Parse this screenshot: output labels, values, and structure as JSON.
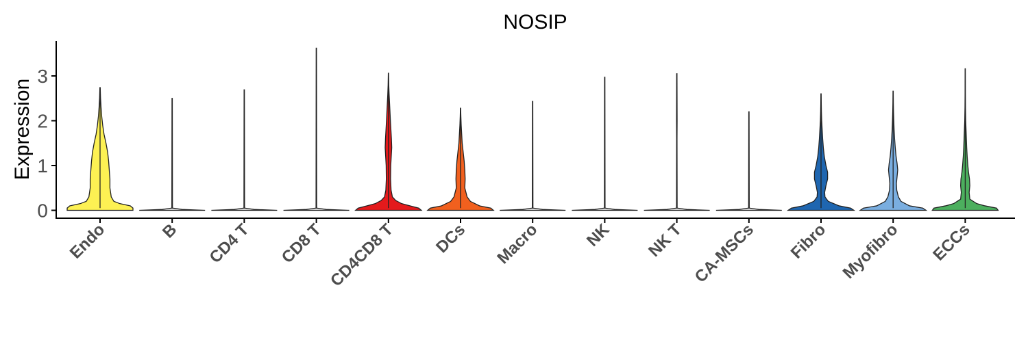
{
  "chart_data": {
    "type": "violin",
    "title": "NOSIP",
    "xlabel": "",
    "ylabel": "Expression",
    "ylim": [
      -0.2,
      3.8
    ],
    "yticks": [
      "0",
      "1",
      "2",
      "3"
    ],
    "grid": false,
    "legend": "none",
    "categories": [
      "Endo",
      "B",
      "CD4 T",
      "CD8 T",
      "CD4CD8 T",
      "DCs",
      "Macro",
      "NK",
      "NK T",
      "CA-MSCs",
      "Fibro",
      "Myofibro",
      "ECCs"
    ],
    "max_values": [
      2.74,
      2.5,
      2.69,
      3.62,
      3.06,
      2.28,
      2.43,
      2.97,
      3.05,
      2.2,
      2.6,
      2.66,
      3.16
    ],
    "colors": [
      "#FDF153",
      "#E7E7E7",
      "#E7E7E7",
      "#E7E7E7",
      "#E41A1C",
      "#F1601E",
      "#E7E7E7",
      "#E7E7E7",
      "#E7E7E7",
      "#E7E7E7",
      "#1F66B0",
      "#7AAEE0",
      "#4CAF5E"
    ],
    "shapes": [
      [
        [
          0,
          1.0
        ],
        [
          0.05,
          1.0
        ],
        [
          0.1,
          0.92
        ],
        [
          0.15,
          0.6
        ],
        [
          0.2,
          0.42
        ],
        [
          0.3,
          0.34
        ],
        [
          0.5,
          0.3
        ],
        [
          0.7,
          0.3
        ],
        [
          0.9,
          0.28
        ],
        [
          1.1,
          0.26
        ],
        [
          1.3,
          0.23
        ],
        [
          1.5,
          0.18
        ],
        [
          1.7,
          0.12
        ],
        [
          1.9,
          0.08
        ],
        [
          2.1,
          0.05
        ],
        [
          2.3,
          0.03
        ],
        [
          2.5,
          0.015
        ],
        [
          2.74,
          0.005
        ]
      ],
      [
        [
          0,
          1.0
        ],
        [
          0.02,
          0.3
        ],
        [
          0.05,
          0.01
        ],
        [
          2.5,
          0.005
        ]
      ],
      [
        [
          0,
          1.0
        ],
        [
          0.02,
          0.3
        ],
        [
          0.05,
          0.01
        ],
        [
          2.69,
          0.005
        ]
      ],
      [
        [
          0,
          1.0
        ],
        [
          0.02,
          0.3
        ],
        [
          0.05,
          0.01
        ],
        [
          3.62,
          0.005
        ]
      ],
      [
        [
          0,
          1.0
        ],
        [
          0.05,
          0.92
        ],
        [
          0.1,
          0.66
        ],
        [
          0.15,
          0.4
        ],
        [
          0.22,
          0.22
        ],
        [
          0.3,
          0.12
        ],
        [
          0.45,
          0.08
        ],
        [
          0.7,
          0.065
        ],
        [
          1.0,
          0.07
        ],
        [
          1.2,
          0.085
        ],
        [
          1.4,
          0.1
        ],
        [
          1.6,
          0.09
        ],
        [
          1.8,
          0.075
        ],
        [
          2.0,
          0.06
        ],
        [
          2.3,
          0.04
        ],
        [
          2.6,
          0.02
        ],
        [
          2.8,
          0.01
        ],
        [
          3.06,
          0.004
        ]
      ],
      [
        [
          0,
          1.0
        ],
        [
          0.05,
          0.92
        ],
        [
          0.1,
          0.58
        ],
        [
          0.2,
          0.3
        ],
        [
          0.3,
          0.2
        ],
        [
          0.5,
          0.13
        ],
        [
          0.7,
          0.14
        ],
        [
          0.9,
          0.13
        ],
        [
          1.1,
          0.11
        ],
        [
          1.3,
          0.08
        ],
        [
          1.5,
          0.05
        ],
        [
          1.7,
          0.035
        ],
        [
          1.9,
          0.02
        ],
        [
          2.1,
          0.01
        ],
        [
          2.28,
          0.004
        ]
      ],
      [
        [
          0,
          1.0
        ],
        [
          0.02,
          0.3
        ],
        [
          0.05,
          0.01
        ],
        [
          2.43,
          0.005
        ]
      ],
      [
        [
          0,
          1.0
        ],
        [
          0.02,
          0.3
        ],
        [
          0.05,
          0.01
        ],
        [
          2.97,
          0.005
        ]
      ],
      [
        [
          0,
          1.0
        ],
        [
          0.02,
          0.3
        ],
        [
          0.05,
          0.01
        ],
        [
          1.6,
          0.006
        ],
        [
          2.0,
          0.009
        ],
        [
          3.05,
          0.005
        ]
      ],
      [
        [
          0,
          1.0
        ],
        [
          0.02,
          0.3
        ],
        [
          0.05,
          0.01
        ],
        [
          2.2,
          0.005
        ]
      ],
      [
        [
          0,
          1.0
        ],
        [
          0.05,
          0.9
        ],
        [
          0.1,
          0.55
        ],
        [
          0.2,
          0.22
        ],
        [
          0.3,
          0.12
        ],
        [
          0.4,
          0.11
        ],
        [
          0.55,
          0.15
        ],
        [
          0.7,
          0.2
        ],
        [
          0.85,
          0.2
        ],
        [
          1.0,
          0.15
        ],
        [
          1.2,
          0.1
        ],
        [
          1.4,
          0.07
        ],
        [
          1.6,
          0.05
        ],
        [
          1.8,
          0.035
        ],
        [
          2.0,
          0.02
        ],
        [
          2.2,
          0.012
        ],
        [
          2.4,
          0.007
        ],
        [
          2.6,
          0.004
        ]
      ],
      [
        [
          0,
          1.0
        ],
        [
          0.05,
          0.9
        ],
        [
          0.1,
          0.5
        ],
        [
          0.2,
          0.24
        ],
        [
          0.3,
          0.16
        ],
        [
          0.45,
          0.11
        ],
        [
          0.6,
          0.1
        ],
        [
          0.75,
          0.12
        ],
        [
          0.9,
          0.14
        ],
        [
          1.05,
          0.12
        ],
        [
          1.2,
          0.09
        ],
        [
          1.4,
          0.065
        ],
        [
          1.6,
          0.045
        ],
        [
          1.8,
          0.03
        ],
        [
          2.0,
          0.02
        ],
        [
          2.2,
          0.012
        ],
        [
          2.4,
          0.007
        ],
        [
          2.66,
          0.004
        ]
      ],
      [
        [
          0,
          1.0
        ],
        [
          0.05,
          0.95
        ],
        [
          0.1,
          0.6
        ],
        [
          0.15,
          0.35
        ],
        [
          0.25,
          0.14
        ],
        [
          0.4,
          0.12
        ],
        [
          0.55,
          0.14
        ],
        [
          0.7,
          0.13
        ],
        [
          0.85,
          0.1
        ],
        [
          1.0,
          0.08
        ],
        [
          1.2,
          0.06
        ],
        [
          1.4,
          0.045
        ],
        [
          1.6,
          0.035
        ],
        [
          1.8,
          0.025
        ],
        [
          2.0,
          0.015
        ],
        [
          2.3,
          0.008
        ],
        [
          2.6,
          0.005
        ],
        [
          3.16,
          0.003
        ]
      ]
    ]
  }
}
